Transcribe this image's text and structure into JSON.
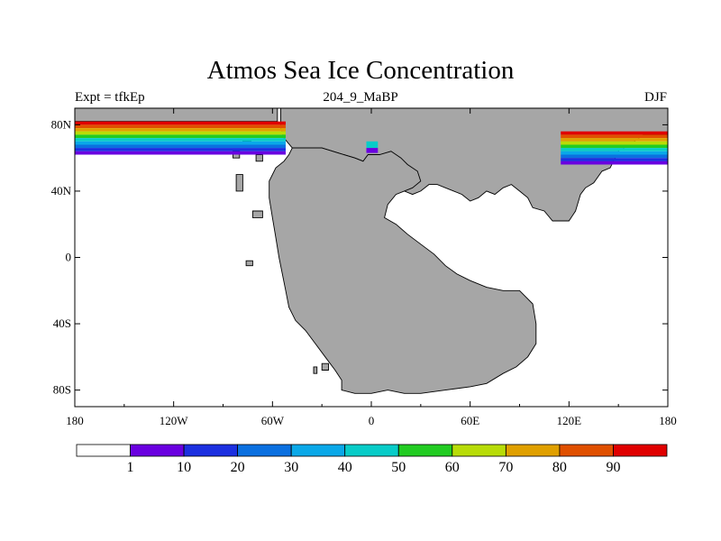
{
  "header": {
    "title": "Atmos Sea Ice Concentration",
    "left": "Expt = tfkEp",
    "center": "204_9_MaBP",
    "right": "DJF"
  },
  "chart_data": {
    "type": "heatmap",
    "title": "Atmos Sea Ice Concentration",
    "subtitle_left": "Expt = tfkEp",
    "subtitle_center": "204_9_MaBP",
    "subtitle_right": "DJF",
    "x_range": [
      -180,
      180
    ],
    "y_range": [
      -90,
      90
    ],
    "x_ticks": [
      {
        "value": -180,
        "label": "180"
      },
      {
        "value": -120,
        "label": "120W"
      },
      {
        "value": -60,
        "label": "60W"
      },
      {
        "value": 0,
        "label": "0"
      },
      {
        "value": 60,
        "label": "60E"
      },
      {
        "value": 120,
        "label": "120E"
      },
      {
        "value": 180,
        "label": "180"
      }
    ],
    "y_ticks": [
      {
        "value": 80,
        "label": "80N"
      },
      {
        "value": 40,
        "label": "40N"
      },
      {
        "value": 0,
        "label": "0"
      },
      {
        "value": -40,
        "label": "40S"
      },
      {
        "value": -80,
        "label": "80S"
      }
    ],
    "land_color": "#a6a6a6",
    "colorbar": {
      "levels": [
        "1",
        "10",
        "20",
        "30",
        "40",
        "50",
        "60",
        "70",
        "80",
        "90"
      ],
      "colors": [
        "#ffffff",
        "#6a00e0",
        "#1c30e0",
        "#0b70e0",
        "#0aa8e8",
        "#08ccc8",
        "#22cc22",
        "#b8dc08",
        "#e0a000",
        "#e05000",
        "#e00000"
      ]
    }
  }
}
